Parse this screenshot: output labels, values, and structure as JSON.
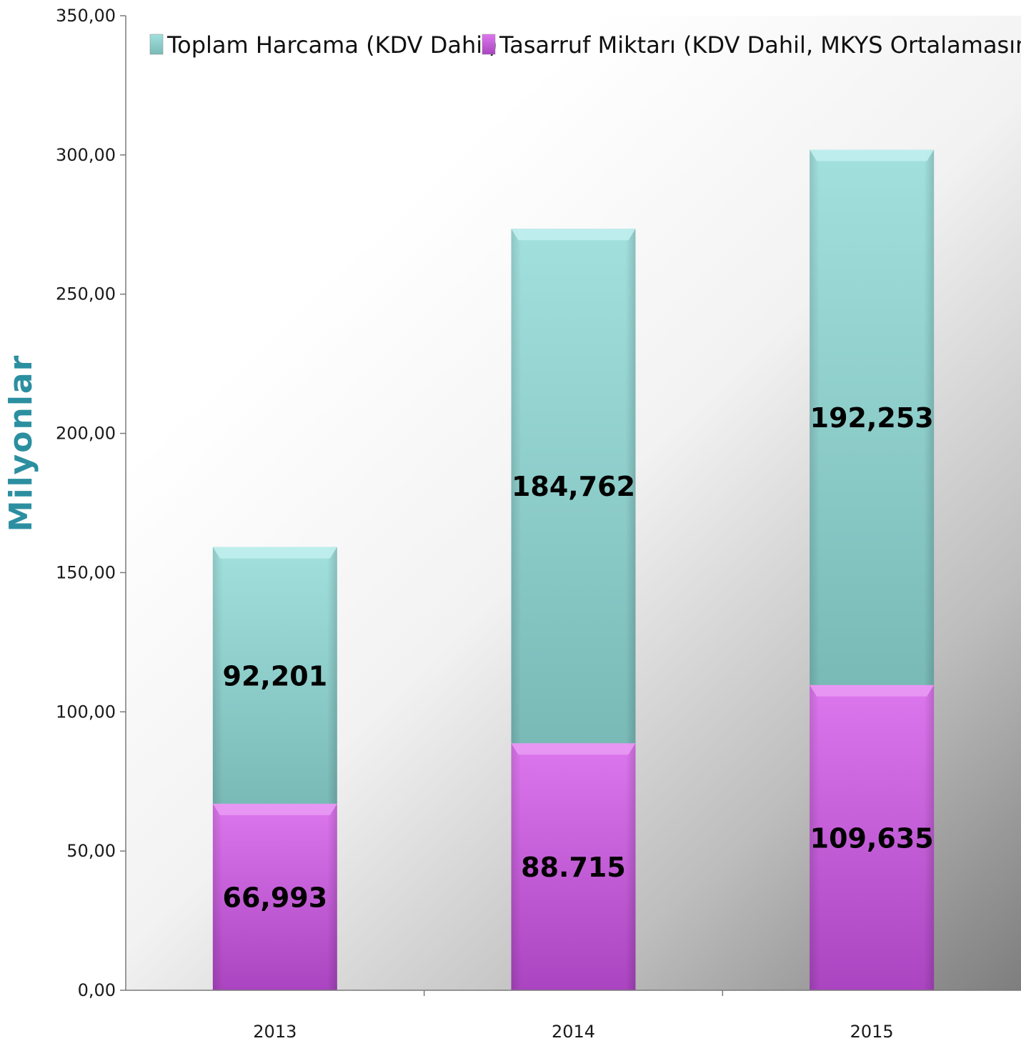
{
  "chart_data": {
    "type": "bar",
    "stacked": true,
    "categories": [
      "2013",
      "2014",
      "2015"
    ],
    "series": [
      {
        "name": "Tasarruf Miktarı (KDV Dahil, MKYS Ortalamasına Göre)",
        "values": [
          66.993,
          88.715,
          109.635
        ],
        "labels": [
          "66,993",
          "88.715",
          "109,635"
        ],
        "color": "#cc66dd"
      },
      {
        "name": "Toplam Harcama (KDV Dahil)",
        "values": [
          92.201,
          184.762,
          192.253
        ],
        "labels": [
          "92,201",
          "184,762",
          "192,253"
        ],
        "color": "#8ecfcc"
      }
    ],
    "legend_order": [
      1,
      0
    ],
    "legend_position": "top",
    "ylabel": "Milyonlar",
    "xlabel": "",
    "ylim": [
      0,
      350
    ],
    "yticks": [
      0,
      50,
      100,
      150,
      200,
      250,
      300,
      350
    ],
    "ytick_labels": [
      "0,00",
      "50,00",
      "100,00",
      "150,00",
      "200,00",
      "250,00",
      "300,00",
      "350,00"
    ],
    "grid": false,
    "background": "gradient white to grey"
  }
}
